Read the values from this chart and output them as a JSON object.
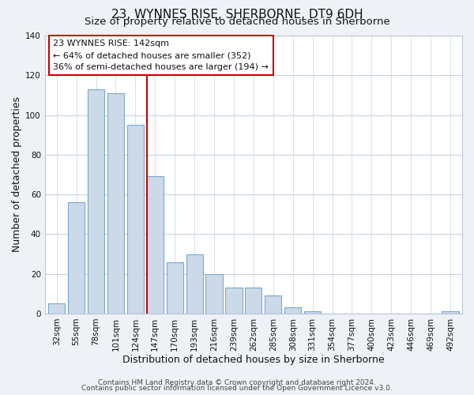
{
  "title": "23, WYNNES RISE, SHERBORNE, DT9 6DH",
  "subtitle": "Size of property relative to detached houses in Sherborne",
  "xlabel": "Distribution of detached houses by size in Sherborne",
  "ylabel": "Number of detached properties",
  "bar_labels": [
    "32sqm",
    "55sqm",
    "78sqm",
    "101sqm",
    "124sqm",
    "147sqm",
    "170sqm",
    "193sqm",
    "216sqm",
    "239sqm",
    "262sqm",
    "285sqm",
    "308sqm",
    "331sqm",
    "354sqm",
    "377sqm",
    "400sqm",
    "423sqm",
    "446sqm",
    "469sqm",
    "492sqm"
  ],
  "bar_values": [
    5,
    56,
    113,
    111,
    95,
    69,
    26,
    30,
    20,
    13,
    13,
    9,
    3,
    1,
    0,
    0,
    0,
    0,
    0,
    0,
    1
  ],
  "bar_color": "#ccd9e8",
  "bar_edge_color": "#7aa8cc",
  "marker_line_color": "#cc0000",
  "annotation_title": "23 WYNNES RISE: 142sqm",
  "annotation_line1": "← 64% of detached houses are smaller (352)",
  "annotation_line2": "36% of semi-detached houses are larger (194) →",
  "annotation_box_facecolor": "#ffffff",
  "annotation_box_edgecolor": "#cc0000",
  "ylim": [
    0,
    140
  ],
  "yticks": [
    0,
    20,
    40,
    60,
    80,
    100,
    120,
    140
  ],
  "footer1": "Contains HM Land Registry data © Crown copyright and database right 2024.",
  "footer2": "Contains public sector information licensed under the Open Government Licence v3.0.",
  "background_color": "#eef2f7",
  "plot_background_color": "#ffffff",
  "grid_color": "#c8d4e0",
  "title_fontsize": 11,
  "subtitle_fontsize": 9.5,
  "axis_label_fontsize": 9,
  "tick_fontsize": 7.5,
  "annotation_fontsize": 8,
  "footer_fontsize": 6.5
}
